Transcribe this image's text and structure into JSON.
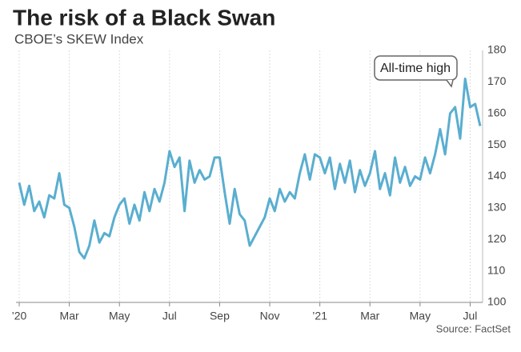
{
  "chart_data": {
    "type": "line",
    "title": "The risk of a Black Swan",
    "subtitle": "CBOE’s SKEW Index",
    "source": "Source: FactSet",
    "annotation": "All-time high",
    "categories": [
      "’20",
      null,
      null,
      null,
      null,
      null,
      null,
      null,
      null,
      null,
      "Mar",
      null,
      null,
      null,
      null,
      null,
      null,
      null,
      null,
      null,
      "May",
      null,
      null,
      null,
      null,
      null,
      null,
      null,
      null,
      null,
      "Jul",
      null,
      null,
      null,
      null,
      null,
      null,
      null,
      null,
      null,
      "Sep",
      null,
      null,
      null,
      null,
      null,
      null,
      null,
      null,
      null,
      "Nov",
      null,
      null,
      null,
      null,
      null,
      null,
      null,
      null,
      null,
      "’21",
      null,
      null,
      null,
      null,
      null,
      null,
      null,
      null,
      null,
      "Mar",
      null,
      null,
      null,
      null,
      null,
      null,
      null,
      null,
      null,
      "May",
      null,
      null,
      null,
      null,
      null,
      null,
      null,
      null,
      null,
      "Jul",
      null,
      null
    ],
    "values": [
      138,
      131,
      137,
      129,
      132,
      127,
      134,
      133,
      141,
      131,
      130,
      124,
      116,
      114,
      118,
      126,
      119,
      122,
      121,
      127,
      131,
      133,
      125,
      131,
      126,
      135,
      129,
      136,
      132,
      138,
      148,
      143,
      146,
      129,
      145,
      138,
      142,
      139,
      140,
      146,
      146,
      135,
      125,
      136,
      128,
      126,
      118,
      121,
      124,
      127,
      133,
      129,
      136,
      132,
      135,
      133,
      141,
      147,
      139,
      147,
      146,
      141,
      146,
      136,
      144,
      138,
      145,
      135,
      142,
      137,
      141,
      148,
      136,
      141,
      134,
      146,
      138,
      143,
      137,
      140,
      139,
      146,
      141,
      147,
      155,
      147,
      160,
      162,
      152,
      171,
      162,
      163,
      156
    ],
    "color": "#5aaed0",
    "ylim": [
      100,
      180
    ],
    "yticks": [
      100,
      110,
      120,
      130,
      140,
      150,
      160,
      170,
      180
    ],
    "grid": true
  }
}
